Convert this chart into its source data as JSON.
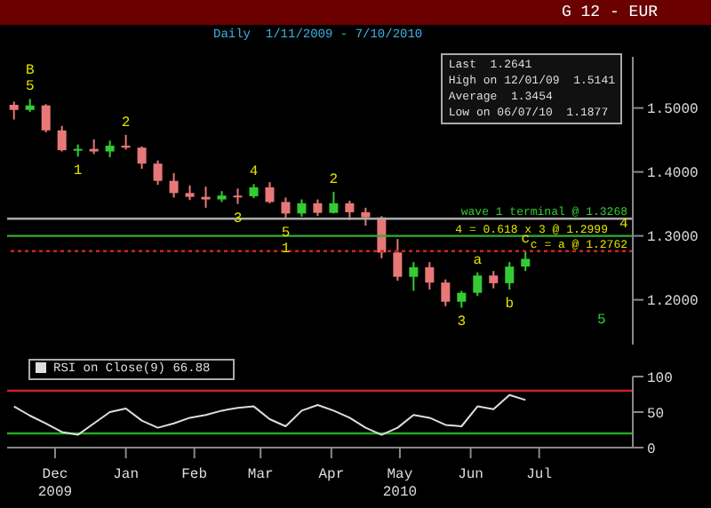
{
  "chart_data": [
    {
      "type": "candlestick",
      "title": "G 12 - EUR",
      "subtitle": "Daily  1/11/2009 - 7/10/2010",
      "tick_labels": "y",
      "grid": false,
      "x": [
        "2009-11-27",
        "2009-12-04",
        "2009-12-11",
        "2009-12-18",
        "2009-12-25",
        "2010-01-01",
        "2010-01-08",
        "2010-01-15",
        "2010-01-22",
        "2010-01-29",
        "2010-02-05",
        "2010-02-12",
        "2010-02-19",
        "2010-02-26",
        "2010-03-05",
        "2010-03-12",
        "2010-03-19",
        "2010-03-26",
        "2010-04-02",
        "2010-04-09",
        "2010-04-16",
        "2010-04-23",
        "2010-04-30",
        "2010-05-07",
        "2010-05-14",
        "2010-05-21",
        "2010-05-28",
        "2010-06-04",
        "2010-06-11",
        "2010-06-18",
        "2010-06-25",
        "2010-07-02",
        "2010-07-09"
      ],
      "ohlc": [
        [
          1.505,
          1.51,
          1.482,
          1.497
        ],
        [
          1.497,
          1.5141,
          1.494,
          1.504
        ],
        [
          1.504,
          1.506,
          1.462,
          1.465
        ],
        [
          1.465,
          1.472,
          1.432,
          1.434
        ],
        [
          1.434,
          1.443,
          1.424,
          1.436
        ],
        [
          1.436,
          1.451,
          1.428,
          1.432
        ],
        [
          1.432,
          1.449,
          1.423,
          1.441
        ],
        [
          1.441,
          1.458,
          1.435,
          1.438
        ],
        [
          1.438,
          1.44,
          1.405,
          1.413
        ],
        [
          1.413,
          1.418,
          1.38,
          1.386
        ],
        [
          1.386,
          1.398,
          1.36,
          1.367
        ],
        [
          1.367,
          1.379,
          1.356,
          1.361
        ],
        [
          1.361,
          1.377,
          1.344,
          1.357
        ],
        [
          1.357,
          1.37,
          1.353,
          1.363
        ],
        [
          1.363,
          1.374,
          1.35,
          1.362
        ],
        [
          1.362,
          1.381,
          1.359,
          1.376
        ],
        [
          1.376,
          1.384,
          1.351,
          1.353
        ],
        [
          1.353,
          1.36,
          1.327,
          1.335
        ],
        [
          1.335,
          1.357,
          1.33,
          1.351
        ],
        [
          1.351,
          1.357,
          1.331,
          1.336
        ],
        [
          1.336,
          1.369,
          1.335,
          1.351
        ],
        [
          1.351,
          1.355,
          1.325,
          1.337
        ],
        [
          1.337,
          1.344,
          1.316,
          1.329
        ],
        [
          1.329,
          1.331,
          1.265,
          1.274
        ],
        [
          1.274,
          1.295,
          1.23,
          1.236
        ],
        [
          1.236,
          1.259,
          1.214,
          1.251
        ],
        [
          1.251,
          1.259,
          1.216,
          1.227
        ],
        [
          1.227,
          1.232,
          1.19,
          1.197
        ],
        [
          1.197,
          1.214,
          1.1877,
          1.211
        ],
        [
          1.211,
          1.243,
          1.206,
          1.238
        ],
        [
          1.238,
          1.245,
          1.218,
          1.226
        ],
        [
          1.226,
          1.259,
          1.216,
          1.252
        ],
        [
          1.252,
          1.2762,
          1.245,
          1.2641
        ]
      ],
      "colors": [
        "#e87878",
        "#33cc33",
        "#e87878",
        "#e87878",
        "#33cc33",
        "#e87878",
        "#33cc33",
        "#e87878",
        "#e87878",
        "#e87878",
        "#e87878",
        "#e87878",
        "#e87878",
        "#33cc33",
        "#e87878",
        "#33cc33",
        "#e87878",
        "#e87878",
        "#33cc33",
        "#e87878",
        "#33cc33",
        "#e87878",
        "#e87878",
        "#e87878",
        "#e87878",
        "#33cc33",
        "#e87878",
        "#e87878",
        "#33cc33",
        "#33cc33",
        "#e87878",
        "#33cc33",
        "#33cc33"
      ],
      "xlim": [
        "2009-11-24",
        "2010-08-25"
      ],
      "ylim": [
        1.13,
        1.58
      ],
      "yticks": [
        {
          "value": 1.2,
          "label": "1.2000"
        },
        {
          "value": 1.3,
          "label": "1.3000"
        },
        {
          "value": 1.4,
          "label": "1.4000"
        },
        {
          "value": 1.5,
          "label": "1.5000"
        }
      ],
      "ref_lines": [
        {
          "axis": "y",
          "value": 1.3268,
          "label": "wave 1 terminal @ 1.3268",
          "color": "#aaaaaa",
          "line_style": "solid"
        },
        {
          "axis": "y",
          "value": 1.2999,
          "label": "4 = 0.618 x 3 @ 1.2999",
          "color": "#33aa33",
          "line_style": "solid"
        },
        {
          "axis": "y",
          "value": 1.2762,
          "label": "c = a @ 1.2762",
          "color": "#cc2222",
          "line_style": "dotted"
        }
      ],
      "annotations": [
        "Last  1.2641",
        "High on 12/01/09  1.5141",
        "Average  1.3454",
        "Low on 06/07/10  1.1877",
        "5",
        {
          "text": "B",
          "x": "2009-12-04",
          "y": 1.5141
        },
        {
          "text": "5",
          "x": "2009-12-04",
          "y": 1.5141
        },
        {
          "text": "1",
          "x": "2009-12-25",
          "y": 1.424
        },
        {
          "text": "2",
          "x": "2010-01-15",
          "y": 1.458
        },
        {
          "text": "3",
          "x": "2010-03-05",
          "y": 1.35
        },
        {
          "text": "4",
          "x": "2010-03-12",
          "y": 1.381
        },
        {
          "text": "5",
          "x": "2010-03-26",
          "y": 1.327
        },
        {
          "text": "1",
          "x": "2010-03-26",
          "y": 1.327
        },
        {
          "text": "2",
          "x": "2010-04-16",
          "y": 1.369
        },
        {
          "text": "3",
          "x": "2010-06-11",
          "y": 1.1877
        },
        {
          "text": "a",
          "x": "2010-06-18",
          "y": 1.243
        },
        {
          "text": "b",
          "x": "2010-07-02",
          "y": 1.216
        },
        {
          "text": "c",
          "x": "2010-07-09",
          "y": 1.2762
        },
        {
          "text": "4",
          "x": "2010-08-21",
          "y": 1.2999
        }
      ]
    },
    {
      "type": "line",
      "grid": false,
      "legend": "top left",
      "marker": "none",
      "line_style": "solid",
      "x": [
        "2009-11-27",
        "2009-12-04",
        "2009-12-11",
        "2009-12-18",
        "2009-12-25",
        "2010-01-01",
        "2010-01-08",
        "2010-01-15",
        "2010-01-22",
        "2010-01-29",
        "2010-02-05",
        "2010-02-12",
        "2010-02-19",
        "2010-02-26",
        "2010-03-05",
        "2010-03-12",
        "2010-03-19",
        "2010-03-26",
        "2010-04-02",
        "2010-04-09",
        "2010-04-16",
        "2010-04-23",
        "2010-04-30",
        "2010-05-07",
        "2010-05-14",
        "2010-05-21",
        "2010-05-28",
        "2010-06-04",
        "2010-06-11",
        "2010-06-18",
        "2010-06-25",
        "2010-07-02",
        "2010-07-09"
      ],
      "series": [
        {
          "name": "RSI on Close(9) 66.88",
          "color": "#dddddd",
          "values": [
            58,
            45,
            34,
            22,
            18,
            34,
            50,
            55,
            38,
            28,
            34,
            42,
            46,
            52,
            56,
            58,
            40,
            30,
            52,
            60,
            52,
            42,
            28,
            18,
            28,
            46,
            42,
            32,
            30,
            58,
            54,
            74,
            67
          ]
        }
      ],
      "xlim": [
        "2009-11-24",
        "2010-08-25"
      ],
      "xticks": [
        {
          "value": "2009-12-15",
          "label": "Dec 2009"
        },
        {
          "value": "2010-01-15",
          "label": "Jan"
        },
        {
          "value": "2010-02-14",
          "label": "Feb"
        },
        {
          "value": "2010-03-15",
          "label": "Mar"
        },
        {
          "value": "2010-04-15",
          "label": "Apr"
        },
        {
          "value": "2010-05-15",
          "label": "May 2010"
        },
        {
          "value": "2010-06-15",
          "label": "Jun"
        },
        {
          "value": "2010-07-15",
          "label": "Jul"
        }
      ],
      "ylim": [
        0,
        100
      ],
      "yticks": [
        0,
        50,
        100
      ],
      "ref_lines": [
        {
          "axis": "y",
          "value": 80,
          "color": "#cc2222"
        },
        {
          "axis": "y",
          "value": 20,
          "color": "#22aa22"
        }
      ]
    }
  ]
}
